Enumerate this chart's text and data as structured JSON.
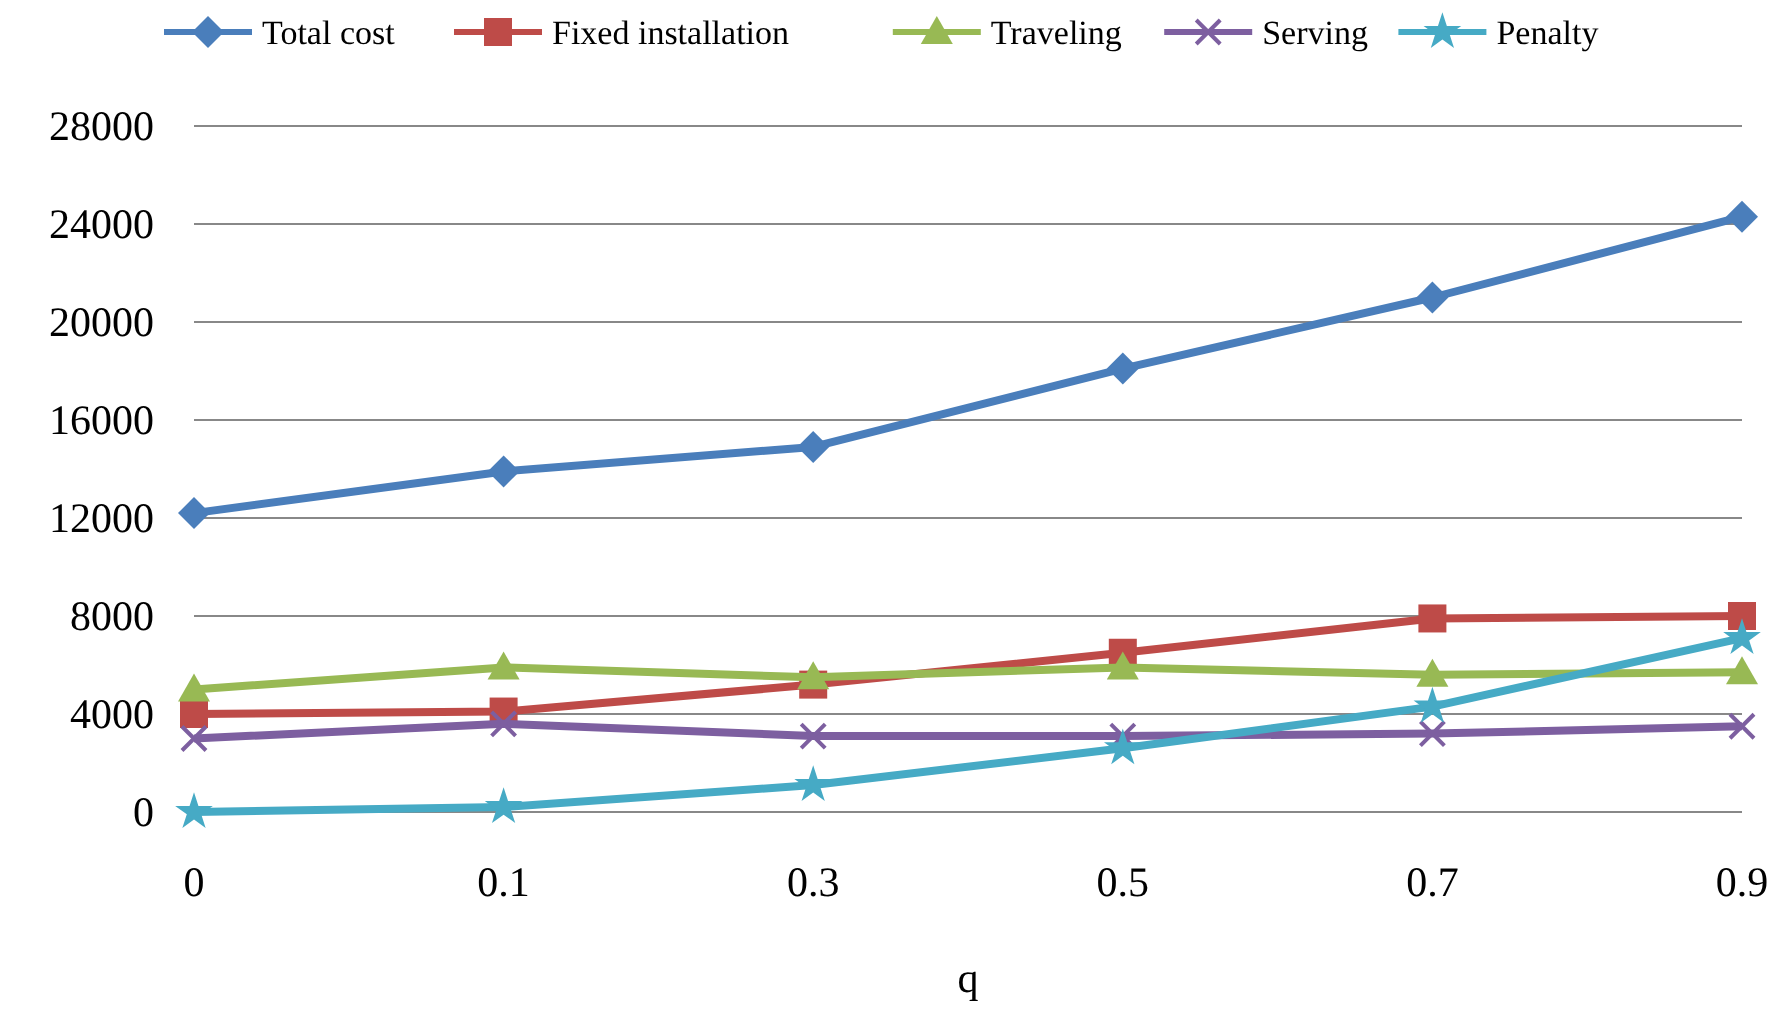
{
  "chart_data": {
    "type": "line",
    "xlabel": "q",
    "categories": [
      "0",
      "0.1",
      "0.3",
      "0.5",
      "0.7",
      "0.9"
    ],
    "ylim": [
      0,
      28000
    ],
    "yticks": [
      0,
      4000,
      8000,
      12000,
      16000,
      20000,
      24000,
      28000
    ],
    "grid": "y",
    "legend": "top",
    "series": [
      {
        "name": "Total cost",
        "color": "#4a7ebb",
        "marker": "diamond",
        "values": [
          12200,
          13900,
          14900,
          18100,
          21000,
          24300
        ]
      },
      {
        "name": "Fixed installation",
        "color": "#be4b48",
        "marker": "square",
        "values": [
          4000,
          4100,
          5200,
          6500,
          7900,
          8000
        ]
      },
      {
        "name": "Traveling",
        "color": "#98b954",
        "marker": "triangle",
        "values": [
          5000,
          5900,
          5500,
          5900,
          5600,
          5700
        ]
      },
      {
        "name": "Serving",
        "color": "#7d5fa0",
        "marker": "cross",
        "values": [
          3000,
          3600,
          3100,
          3100,
          3200,
          3500
        ]
      },
      {
        "name": "Penalty",
        "color": "#46aac5",
        "marker": "star",
        "values": [
          0,
          200,
          1100,
          2600,
          4300,
          7100
        ]
      }
    ]
  }
}
